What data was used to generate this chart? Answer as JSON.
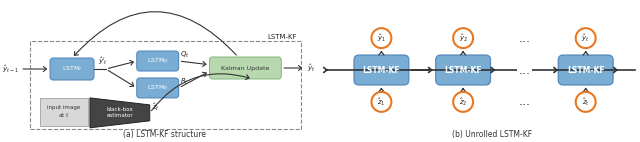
{
  "fig_width": 6.4,
  "fig_height": 1.42,
  "dpi": 100,
  "bg_color": "#ffffff",
  "lstm_box_color": "#7aadd4",
  "lstm_box_edge": "#5588bb",
  "kalman_box_color": "#b8d9b0",
  "kalman_box_edge": "#88bb88",
  "input_box_color": "#d8d8d8",
  "input_box_edge": "#aaaaaa",
  "blackbox_color": "#444444",
  "orange_circle": "#e87722",
  "dashed_border_color": "#888888",
  "arrow_color": "#333333",
  "text_color": "#222222",
  "label_caption_color": "#333333",
  "subtitle_a": "(a) LSTM-KF structure",
  "subtitle_b": "(b) Unrolled LSTM-KF",
  "top_label": "LSTM-KF"
}
